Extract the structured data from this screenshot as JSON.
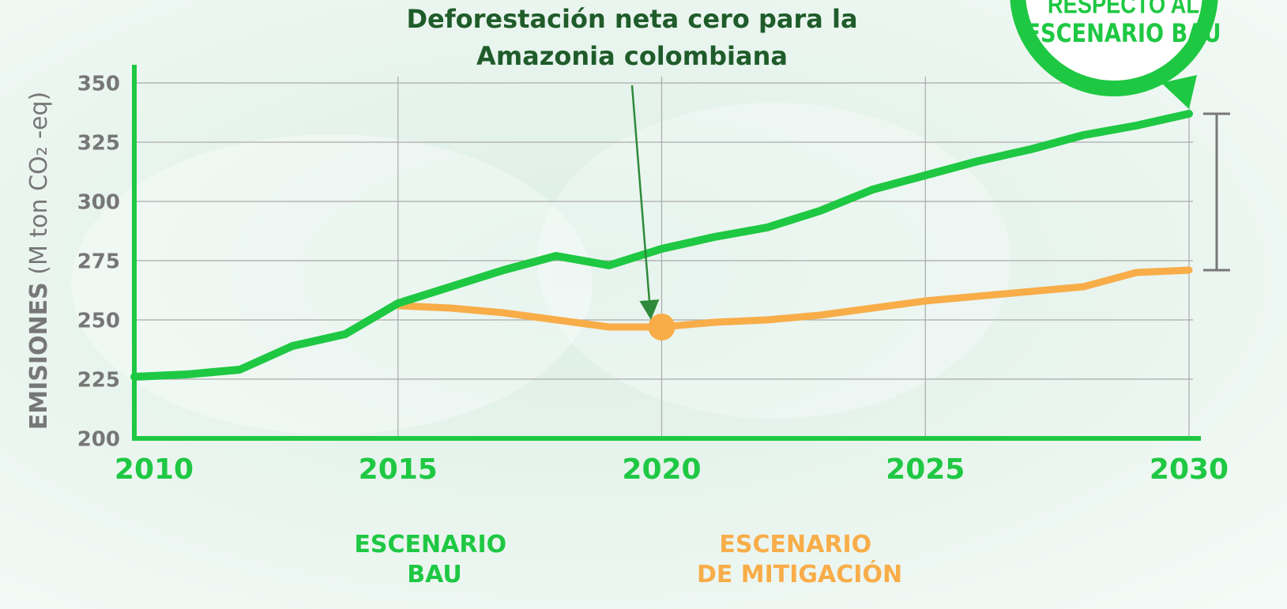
{
  "chart_data": {
    "type": "line",
    "y_label": {
      "bold": "EMISIONES",
      "rest": "(M ton CO₂ -eq)"
    },
    "xlim": [
      2010,
      2030
    ],
    "xticks": [
      2010,
      2015,
      2020,
      2025,
      2030
    ],
    "ylim": [
      200,
      350
    ],
    "yticks": [
      200,
      225,
      250,
      275,
      300,
      325,
      350
    ],
    "grid": true,
    "series": [
      {
        "name": "ESCENARIO BAU",
        "color": "#1fc843",
        "x": [
          2010,
          2011,
          2012,
          2013,
          2014,
          2015,
          2016,
          2017,
          2018,
          2019,
          2020,
          2021,
          2022,
          2023,
          2024,
          2025,
          2026,
          2027,
          2028,
          2029,
          2030
        ],
        "values": [
          226,
          227,
          229,
          239,
          244,
          257,
          264,
          271,
          277,
          273,
          280,
          285,
          289,
          296,
          305,
          311,
          317,
          322,
          328,
          332,
          337
        ]
      },
      {
        "name": "ESCENARIO DE MITIGACIÓN",
        "color": "#f8ad49",
        "x": [
          2015,
          2016,
          2017,
          2018,
          2019,
          2020,
          2021,
          2022,
          2023,
          2024,
          2025,
          2026,
          2027,
          2028,
          2029,
          2030
        ],
        "values": [
          256,
          255,
          253,
          250,
          247,
          247,
          249,
          250,
          252,
          255,
          258,
          260,
          262,
          264,
          270,
          271
        ]
      }
    ],
    "annotation": {
      "text": [
        "Deforestación neta cero para la",
        "Amazonia colombiana"
      ],
      "point": {
        "x": 2020,
        "y": 247
      }
    },
    "badge": [
      "RESPECTO AL",
      "ESCENARIO BAU"
    ]
  }
}
